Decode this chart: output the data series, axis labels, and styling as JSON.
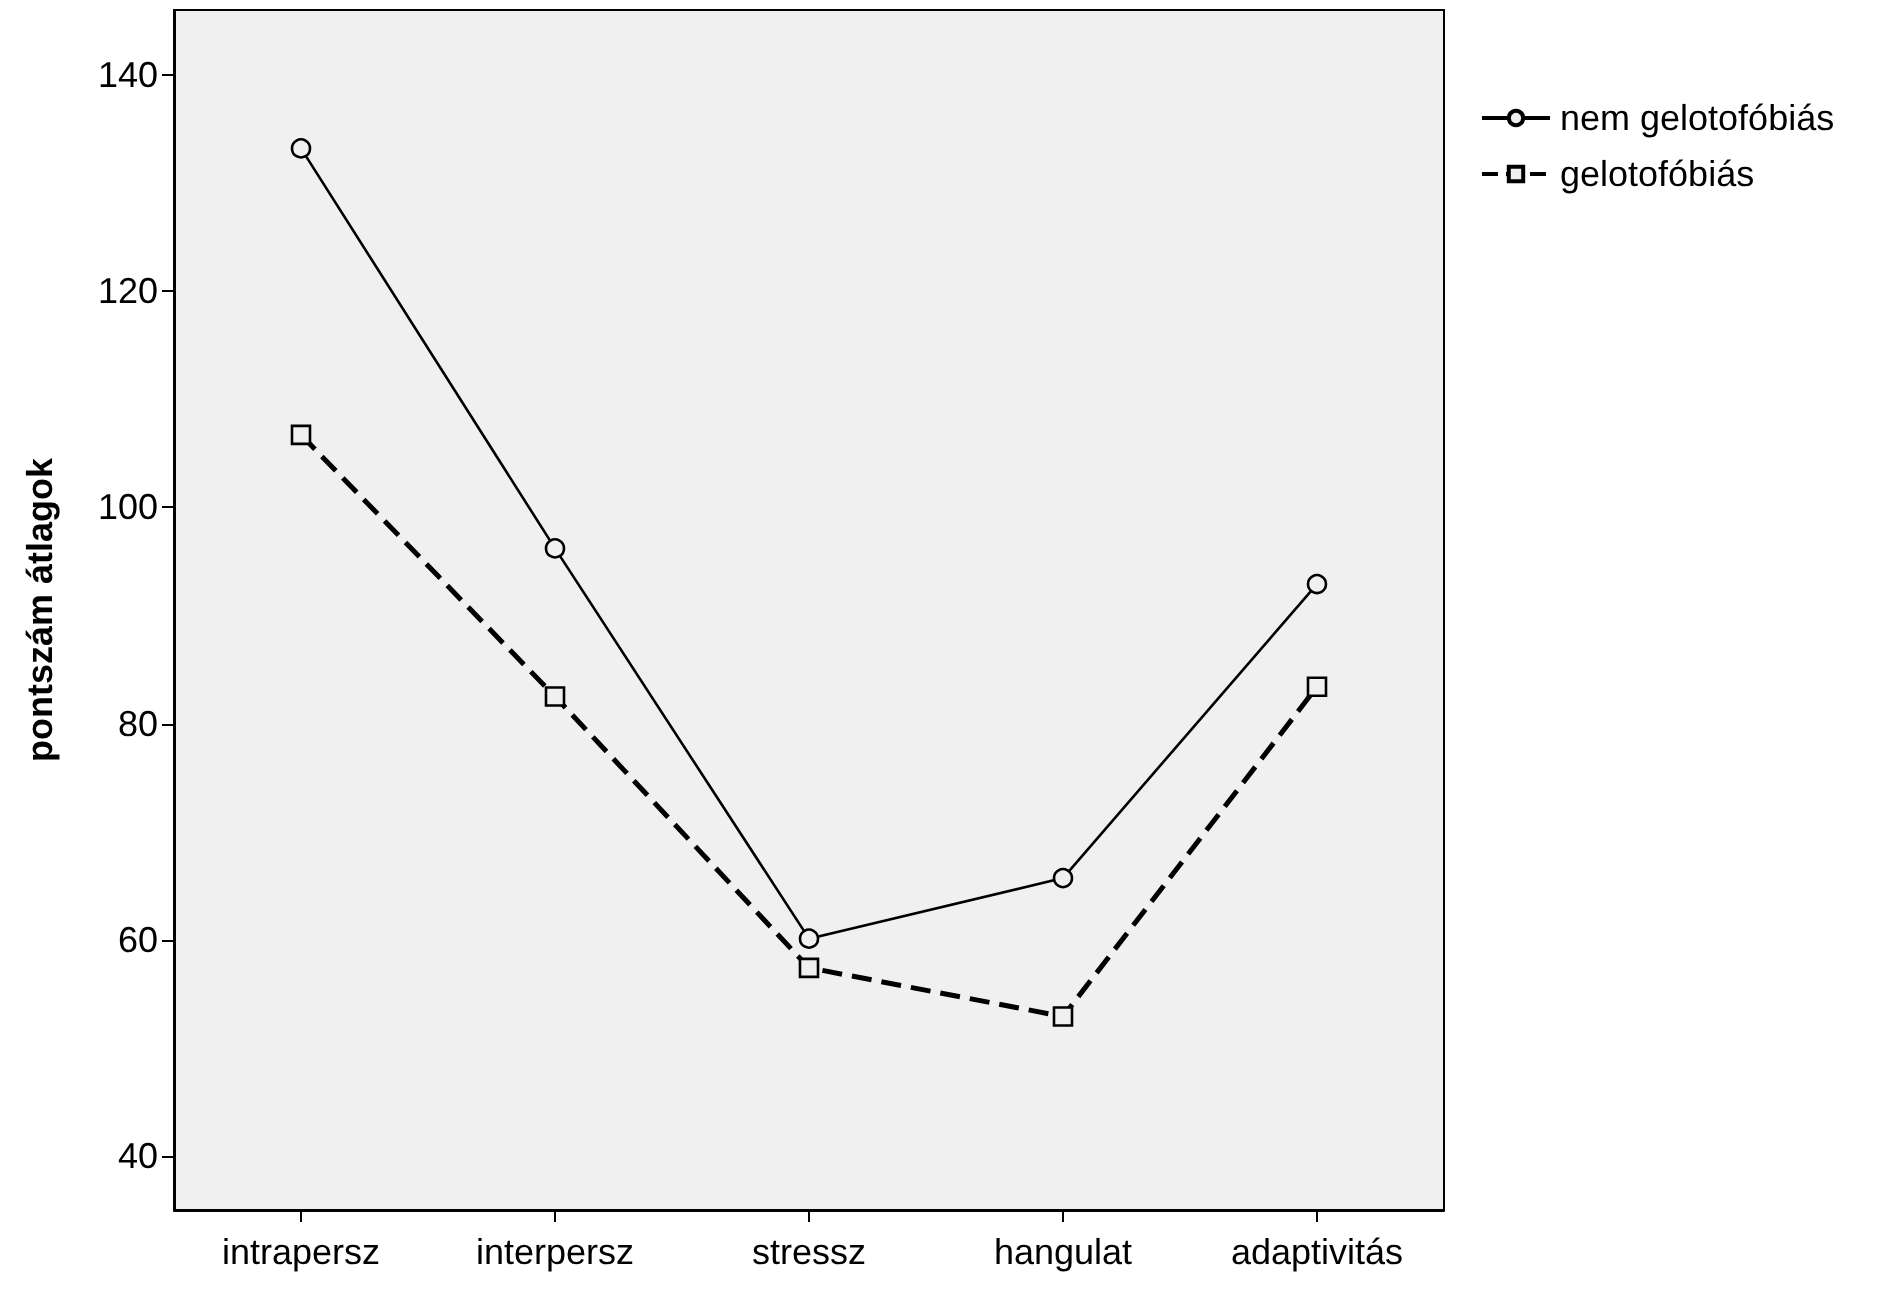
{
  "chart_data": {
    "type": "line",
    "ylabel": "pontszám átlagok",
    "categories": [
      "intrapersz",
      "interpersz",
      "stressz",
      "hangulat",
      "adaptivitás"
    ],
    "series": [
      {
        "name": "nem gelotofóbiás",
        "color": "#000000",
        "marker": "circle",
        "line_style": "solid",
        "values": [
          133.2,
          96.2,
          60.1,
          65.7,
          92.9
        ]
      },
      {
        "name": "gelotofóbiás",
        "color": "#000000",
        "marker": "square",
        "line_style": "dashed",
        "values": [
          106.7,
          82.5,
          57.4,
          52.9,
          83.4
        ]
      }
    ],
    "ylim": [
      35,
      146
    ],
    "yticks": [
      40,
      60,
      80,
      100,
      120,
      140
    ],
    "grid": false,
    "legend": "top right"
  }
}
